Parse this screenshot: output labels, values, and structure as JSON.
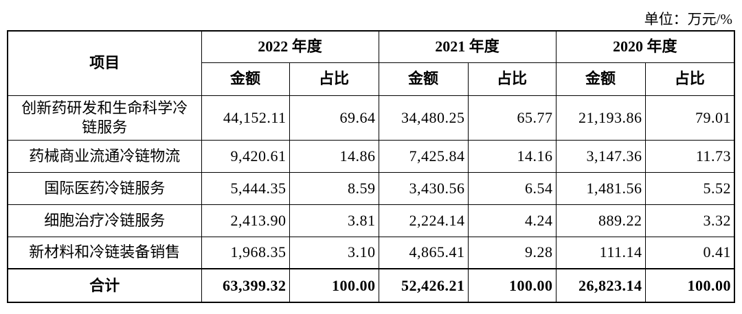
{
  "unit": "单位：万元/%",
  "table": {
    "item_header": "项目",
    "years": [
      "2022 年度",
      "2021 年度",
      "2020 年度"
    ],
    "subheaders": [
      "金额",
      "占比"
    ],
    "rows": [
      [
        "创新药研发和生命科学冷链服务",
        "44,152.11",
        "69.64",
        "34,480.25",
        "65.77",
        "21,193.86",
        "79.01"
      ],
      [
        "药械商业流通冷链物流",
        "9,420.61",
        "14.86",
        "7,425.84",
        "14.16",
        "3,147.36",
        "11.73"
      ],
      [
        "国际医药冷链服务",
        "5,444.35",
        "8.59",
        "3,430.56",
        "6.54",
        "1,481.56",
        "5.52"
      ],
      [
        "细胞治疗冷链服务",
        "2,413.90",
        "3.81",
        "2,224.14",
        "4.24",
        "889.22",
        "3.32"
      ],
      [
        "新材料和冷链装备销售",
        "1,968.35",
        "3.10",
        "4,865.41",
        "9.28",
        "111.14",
        "0.41"
      ]
    ],
    "total": [
      "合计",
      "63,399.32",
      "100.00",
      "52,426.21",
      "100.00",
      "26,823.14",
      "100.00"
    ]
  }
}
